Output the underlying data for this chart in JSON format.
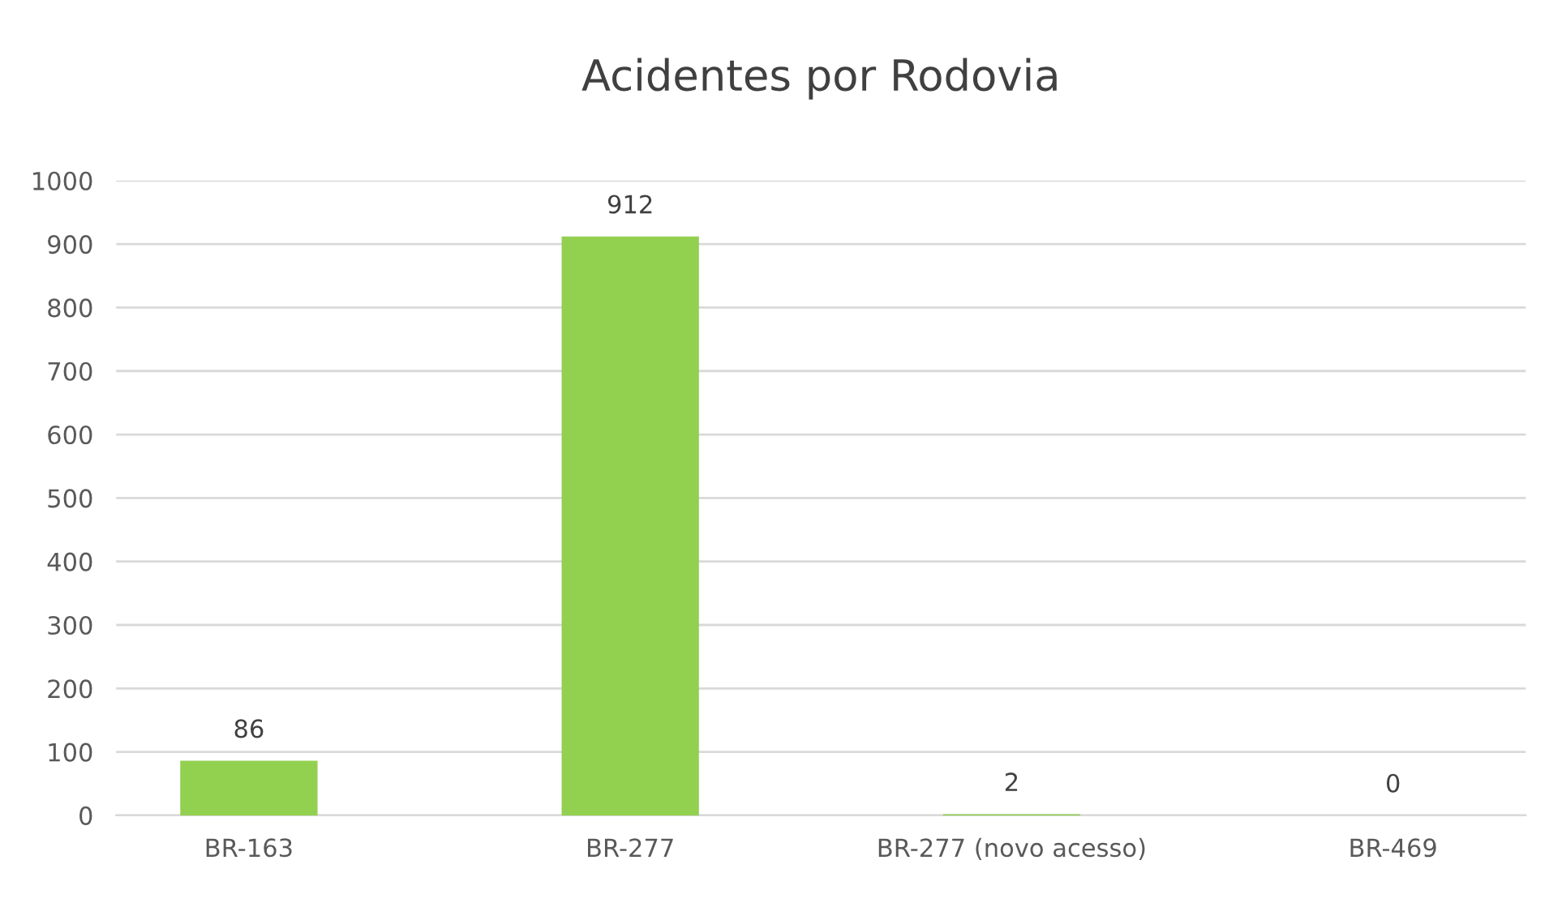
{
  "chart_data": {
    "type": "bar",
    "title": "Acidentes por Rodovia",
    "categories": [
      "BR-163",
      "BR-277",
      "BR-277 (novo acesso)",
      "BR-469"
    ],
    "values": [
      86,
      912,
      2,
      0
    ],
    "color": "#92d050",
    "ylim": [
      0,
      1000
    ],
    "yticks": [
      0,
      100,
      200,
      300,
      400,
      500,
      600,
      700,
      800,
      900,
      1000
    ],
    "grid": "y",
    "data_labels": true,
    "legend": false
  }
}
